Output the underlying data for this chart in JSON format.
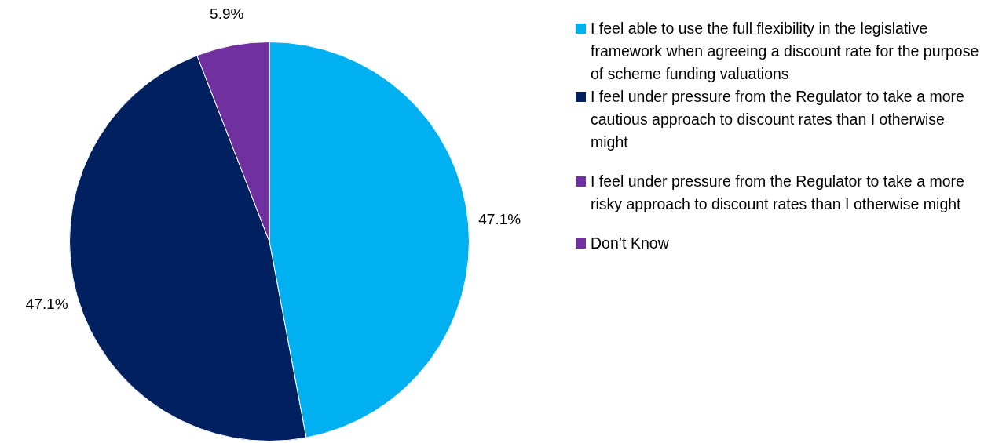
{
  "chart_data": {
    "type": "pie",
    "categories": [
      "I feel able to use the full flexibility in the legislative framework when agreeing a discount rate for the purpose of scheme funding valuations",
      "I feel under pressure from the Regulator to take a more cautious approach to discount rates than I otherwise might",
      "I feel under pressure from the Regulator to take a more risky approach to discount rates than I otherwise might",
      "Don’t Know"
    ],
    "values": [
      47.1,
      47.1,
      0,
      5.9
    ],
    "colors": [
      "#00b0f0",
      "#002060",
      "#7030a0",
      "#7030a0"
    ],
    "value_labels": [
      "47.1%",
      "47.1%",
      null,
      "5.9%"
    ],
    "legend": "right"
  }
}
